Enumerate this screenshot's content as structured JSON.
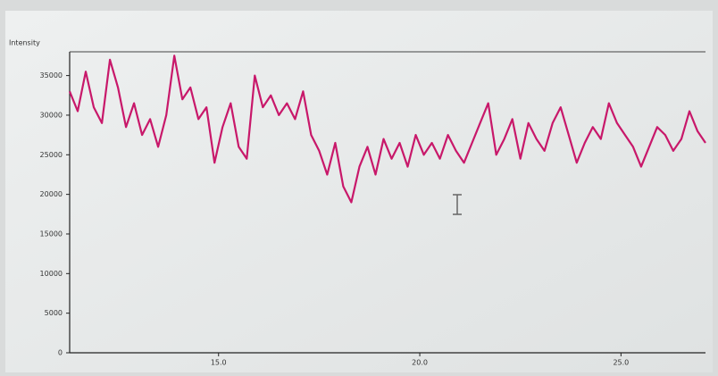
{
  "chart_data": {
    "type": "line",
    "y_label": "Intensity",
    "x": [
      11.3,
      11.5,
      11.7,
      11.9,
      12.1,
      12.3,
      12.5,
      12.7,
      12.9,
      13.1,
      13.3,
      13.5,
      13.7,
      13.9,
      14.1,
      14.3,
      14.5,
      14.7,
      14.9,
      15.1,
      15.3,
      15.5,
      15.7,
      15.9,
      16.1,
      16.3,
      16.5,
      16.7,
      16.9,
      17.1,
      17.3,
      17.5,
      17.7,
      17.9,
      18.1,
      18.3,
      18.5,
      18.7,
      18.9,
      19.1,
      19.3,
      19.5,
      19.7,
      19.9,
      20.1,
      20.3,
      20.5,
      20.7,
      20.9,
      21.1,
      21.3,
      21.5,
      21.7,
      21.9,
      22.1,
      22.3,
      22.5,
      22.7,
      22.9,
      23.1,
      23.3,
      23.5,
      23.7,
      23.9,
      24.1,
      24.3,
      24.5,
      24.7,
      24.9,
      25.1,
      25.3,
      25.5,
      25.7,
      25.9,
      26.1,
      26.3,
      26.5,
      26.7,
      26.9,
      27.1
    ],
    "series": [
      {
        "color": "#c8186a",
        "values": [
          33000,
          30500,
          35500,
          31000,
          29000,
          37000,
          33500,
          28500,
          31500,
          27500,
          29500,
          26000,
          30000,
          37500,
          32000,
          33500,
          29500,
          31000,
          24000,
          28500,
          31500,
          26000,
          24500,
          35000,
          31000,
          32500,
          30000,
          31500,
          29500,
          33000,
          27500,
          25500,
          22500,
          26500,
          21000,
          19000,
          23500,
          26000,
          22500,
          27000,
          24500,
          26500,
          23500,
          27500,
          25000,
          26500,
          24500,
          27500,
          25500,
          24000,
          26500,
          29000,
          31500,
          25000,
          27000,
          29500,
          24500,
          29000,
          27000,
          25500,
          29000,
          31000,
          27500,
          24000,
          26500,
          28500,
          27000,
          31500,
          29000,
          27500,
          26000,
          23500,
          26000,
          28500,
          27500,
          25500,
          27000,
          30500,
          28000,
          26500
        ]
      }
    ],
    "xlim": [
      11.3,
      27.1
    ],
    "ylim": [
      0,
      38000
    ],
    "xticks": [
      {
        "value": 15,
        "label": "15.0"
      },
      {
        "value": 20,
        "label": "20.0"
      },
      {
        "value": 25,
        "label": "25.0"
      }
    ],
    "yticks": [
      0,
      5000,
      10000,
      15000,
      20000,
      25000,
      30000,
      35000
    ]
  }
}
